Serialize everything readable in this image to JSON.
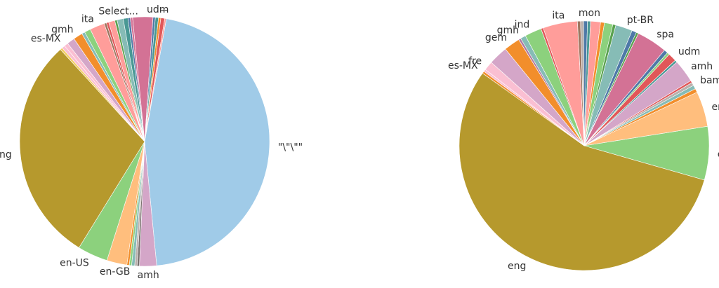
{
  "chart_data": [
    {
      "type": "pie",
      "title": "",
      "labels": [
        "\"\\\"\\\"\"",
        "amh",
        "en-GB",
        "en-US",
        "eng",
        "es-MX",
        "gmh",
        "ita",
        "Select...",
        "udm",
        "--"
      ],
      "slices": [
        {
          "label": "\"\\\"\\\"\"",
          "value": 45.5,
          "color": "#a0cbe8",
          "show": true
        },
        {
          "label": "amh",
          "value": 2.2,
          "color": "#d4a6c8",
          "show": true
        },
        {
          "label": "",
          "value": 0.3,
          "color": "#79706e",
          "show": false
        },
        {
          "label": "",
          "value": 0.3,
          "color": "#bab0ac",
          "show": false
        },
        {
          "label": "",
          "value": 0.4,
          "color": "#86bcb6",
          "show": false
        },
        {
          "label": "",
          "value": 0.3,
          "color": "#8cd17d",
          "show": false
        },
        {
          "label": "",
          "value": 0.3,
          "color": "#f28e2b",
          "show": false
        },
        {
          "label": "en-GB",
          "value": 2.6,
          "color": "#ffbe7d",
          "show": true
        },
        {
          "label": "en-US",
          "value": 3.9,
          "color": "#8cd17d",
          "show": true
        },
        {
          "label": "eng",
          "value": 29.3,
          "color": "#b6992d",
          "show": true
        },
        {
          "label": "",
          "value": 0.3,
          "color": "#f1ce63",
          "show": false
        },
        {
          "label": "",
          "value": 0.4,
          "color": "#fabfd2",
          "show": false
        },
        {
          "label": "es-MX",
          "value": 0.5,
          "color": "#fabfd2",
          "show": true
        },
        {
          "label": "",
          "value": 1.0,
          "color": "#d4a6c8",
          "show": false
        },
        {
          "label": "gmh",
          "value": 1.2,
          "color": "#f28e2b",
          "show": true
        },
        {
          "label": "",
          "value": 0.4,
          "color": "#86bcb6",
          "show": false
        },
        {
          "label": "",
          "value": 0.8,
          "color": "#8cd17d",
          "show": false
        },
        {
          "label": "ita",
          "value": 1.9,
          "color": "#ff9d9a",
          "show": true
        },
        {
          "label": "",
          "value": 0.3,
          "color": "#9d7660",
          "show": false
        },
        {
          "label": "",
          "value": 0.3,
          "color": "#e15759",
          "show": false
        },
        {
          "label": "",
          "value": 0.8,
          "color": "#ff9d9a",
          "show": false
        },
        {
          "label": "",
          "value": 0.3,
          "color": "#59a14f",
          "show": false
        },
        {
          "label": "Select...",
          "value": 0.8,
          "color": "#86bcb6",
          "show": true
        },
        {
          "label": "",
          "value": 0.6,
          "color": "#499894",
          "show": false
        },
        {
          "label": "",
          "value": 0.3,
          "color": "#4e79a7",
          "show": false
        },
        {
          "label": "",
          "value": 0.3,
          "color": "#d37295",
          "show": false
        },
        {
          "label": "",
          "value": 2.6,
          "color": "#d37295",
          "show": false
        },
        {
          "label": "",
          "value": 0.3,
          "color": "#4e79a7",
          "show": false
        },
        {
          "label": "udm",
          "value": 0.4,
          "color": "#499894",
          "show": true
        },
        {
          "label": "",
          "value": 0.3,
          "color": "#f28e2b",
          "show": false
        },
        {
          "label": "--",
          "value": 0.5,
          "color": "#e15759",
          "show": true
        },
        {
          "label": "",
          "value": 0.2,
          "color": "#ff9d9a",
          "show": false
        }
      ]
    },
    {
      "type": "pie",
      "title": "",
      "labels": [
        "en-US",
        "eng",
        "es-MX",
        "fre",
        "gem",
        "gmh",
        "ind",
        "ita",
        "mon",
        "pt-BR",
        "spa",
        "udm",
        "amh",
        "bam",
        "en-GB"
      ],
      "slices": [
        {
          "label": "en-US",
          "value": 7.0,
          "color": "#8cd17d",
          "show": true
        },
        {
          "label": "eng",
          "value": 56.0,
          "color": "#b6992d",
          "show": true
        },
        {
          "label": "",
          "value": 0.3,
          "color": "#f28e2b",
          "show": false
        },
        {
          "label": "es-MX",
          "value": 0.3,
          "color": "#fabfd2",
          "show": true
        },
        {
          "label": "fre",
          "value": 1.2,
          "color": "#fabfd2",
          "show": true
        },
        {
          "label": "",
          "value": 2.5,
          "color": "#d4a6c8",
          "show": false
        },
        {
          "label": "gem",
          "value": 2.1,
          "color": "#f28e2b",
          "show": true
        },
        {
          "label": "",
          "value": 0.3,
          "color": "#b07aa1",
          "show": false
        },
        {
          "label": "gmh",
          "value": 0.7,
          "color": "#86bcb6",
          "show": true
        },
        {
          "label": "ind",
          "value": 2.2,
          "color": "#8cd17d",
          "show": true
        },
        {
          "label": "",
          "value": 0.3,
          "color": "#e15759",
          "show": false
        },
        {
          "label": "ita",
          "value": 4.5,
          "color": "#ff9d9a",
          "show": true
        },
        {
          "label": "",
          "value": 0.4,
          "color": "#9d7660",
          "show": false
        },
        {
          "label": "",
          "value": 0.4,
          "color": "#bab0ac",
          "show": false
        },
        {
          "label": "",
          "value": 0.5,
          "color": "#4e79a7",
          "show": false
        },
        {
          "label": "mon",
          "value": 0.4,
          "color": "#499894",
          "show": true
        },
        {
          "label": "",
          "value": 1.3,
          "color": "#ff9d9a",
          "show": false
        },
        {
          "label": "",
          "value": 0.5,
          "color": "#f28e2b",
          "show": false
        },
        {
          "label": "",
          "value": 1.1,
          "color": "#8cd17d",
          "show": false
        },
        {
          "label": "",
          "value": 0.4,
          "color": "#59a14f",
          "show": false
        },
        {
          "label": "pt-BR",
          "value": 2.2,
          "color": "#86bcb6",
          "show": true
        },
        {
          "label": "",
          "value": 0.6,
          "color": "#4e79a7",
          "show": false
        },
        {
          "label": "",
          "value": 0.3,
          "color": "#59a14f",
          "show": false
        },
        {
          "label": "spa",
          "value": 4.0,
          "color": "#d37295",
          "show": true
        },
        {
          "label": "",
          "value": 0.5,
          "color": "#4e79a7",
          "show": false
        },
        {
          "label": "",
          "value": 0.3,
          "color": "#8cd17d",
          "show": false
        },
        {
          "label": "udm",
          "value": 1.1,
          "color": "#e15759",
          "show": true
        },
        {
          "label": "",
          "value": 0.3,
          "color": "#499894",
          "show": false
        },
        {
          "label": "amh",
          "value": 3.0,
          "color": "#d4a6c8",
          "show": true
        },
        {
          "label": "",
          "value": 0.3,
          "color": "#e15759",
          "show": false
        },
        {
          "label": "bam",
          "value": 0.4,
          "color": "#bab0ac",
          "show": true
        },
        {
          "label": "",
          "value": 0.5,
          "color": "#86bcb6",
          "show": false
        },
        {
          "label": "",
          "value": 0.5,
          "color": "#f28e2b",
          "show": false
        },
        {
          "label": "en-GB",
          "value": 4.6,
          "color": "#ffbe7d",
          "show": true
        }
      ]
    }
  ]
}
